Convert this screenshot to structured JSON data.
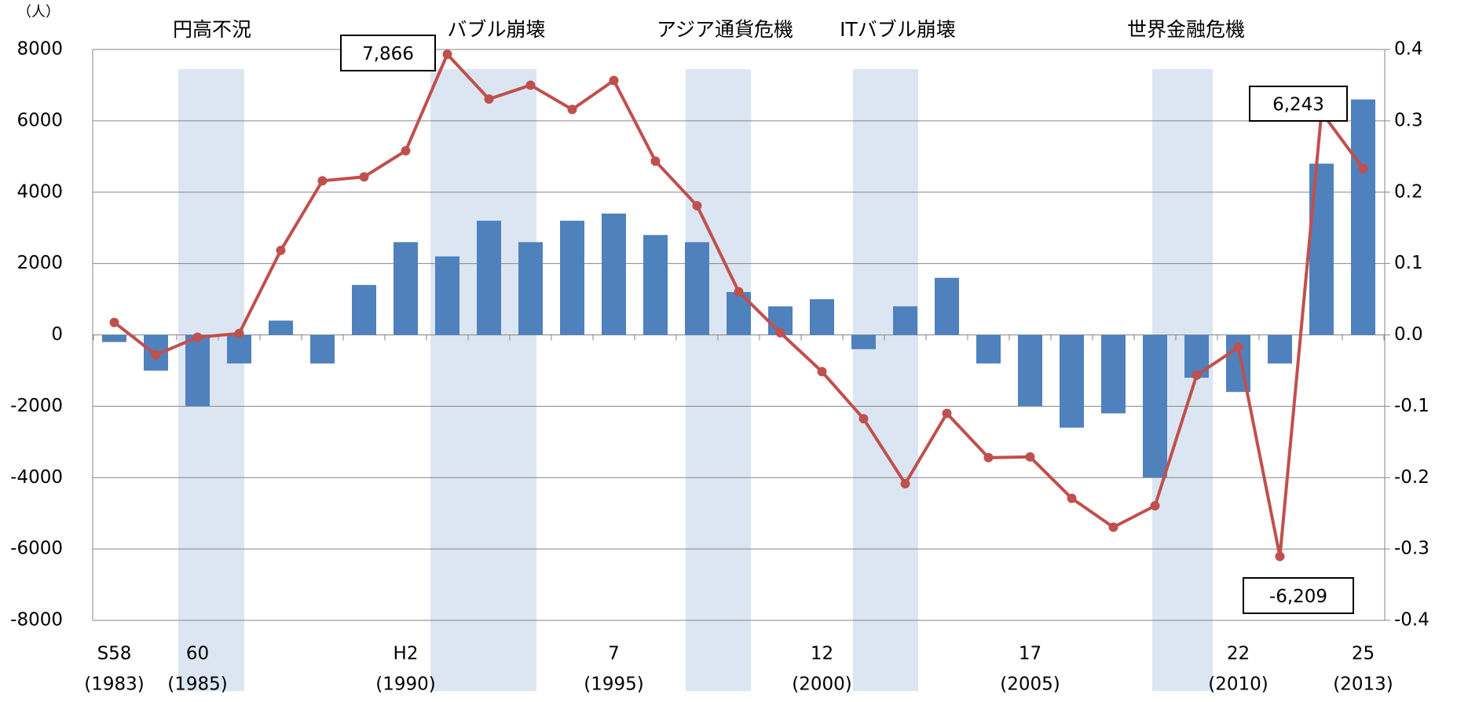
{
  "chart_data": {
    "type": "bar_line",
    "unit_label": "（人）",
    "annotations": [
      "円高不況",
      "バブル崩壊",
      "アジア通貨危機",
      "ITバブル崩壊",
      "世界金融危機"
    ],
    "categories": [
      "S58",
      null,
      "60",
      null,
      null,
      null,
      null,
      "H2",
      null,
      null,
      null,
      null,
      "7",
      null,
      null,
      null,
      null,
      "12",
      null,
      null,
      null,
      null,
      "17",
      null,
      null,
      null,
      null,
      "22",
      null,
      null,
      "25"
    ],
    "category_years": [
      "(1983)",
      null,
      "(1985)",
      null,
      null,
      null,
      null,
      "(1990)",
      null,
      null,
      null,
      null,
      "(1995)",
      null,
      null,
      null,
      null,
      "(2000)",
      null,
      null,
      null,
      null,
      "(2005)",
      null,
      null,
      null,
      null,
      "(2010)",
      null,
      null,
      "(2013)"
    ],
    "series": [
      {
        "type": "bar",
        "axis": "y2",
        "color": "#4f81bd",
        "values": [
          -0.01,
          -0.05,
          -0.1,
          -0.04,
          0.02,
          -0.04,
          0.07,
          0.13,
          0.11,
          0.16,
          0.13,
          0.16,
          0.17,
          0.14,
          0.13,
          0.06,
          0.04,
          0.05,
          -0.02,
          0.04,
          0.08,
          -0.04,
          -0.1,
          -0.13,
          -0.11,
          -0.2,
          -0.06,
          -0.08,
          -0.04,
          0.24,
          0.33
        ]
      },
      {
        "type": "line",
        "axis": "y",
        "color": "#c0504d",
        "values": [
          350,
          -560,
          -65,
          40,
          2370,
          4320,
          4430,
          5160,
          7866,
          6610,
          7000,
          6320,
          7130,
          4870,
          3620,
          1210,
          60,
          -1030,
          -2350,
          -4170,
          -2200,
          -3440,
          -3420,
          -4580,
          -5390,
          -4790,
          -1130,
          -350,
          -6209,
          6243,
          4660
        ],
        "value_labels": [
          null,
          null,
          null,
          null,
          null,
          null,
          null,
          null,
          "7,866",
          null,
          null,
          null,
          null,
          null,
          null,
          null,
          null,
          null,
          null,
          null,
          null,
          null,
          null,
          null,
          null,
          null,
          null,
          null,
          "-6,209",
          "6,243",
          null
        ]
      }
    ],
    "ylim": [
      -8000,
      8000
    ],
    "yticks": [
      -8000,
      -6000,
      -4000,
      -2000,
      0,
      2000,
      4000,
      6000,
      8000
    ],
    "y2lim": [
      -0.4,
      0.4
    ],
    "y2ticks": [
      -0.4,
      -0.3,
      -0.2,
      -0.1,
      {
        "value": 0,
        "label": "0.0"
      },
      0.1,
      0.2,
      0.3,
      0.4
    ],
    "grid": true
  }
}
